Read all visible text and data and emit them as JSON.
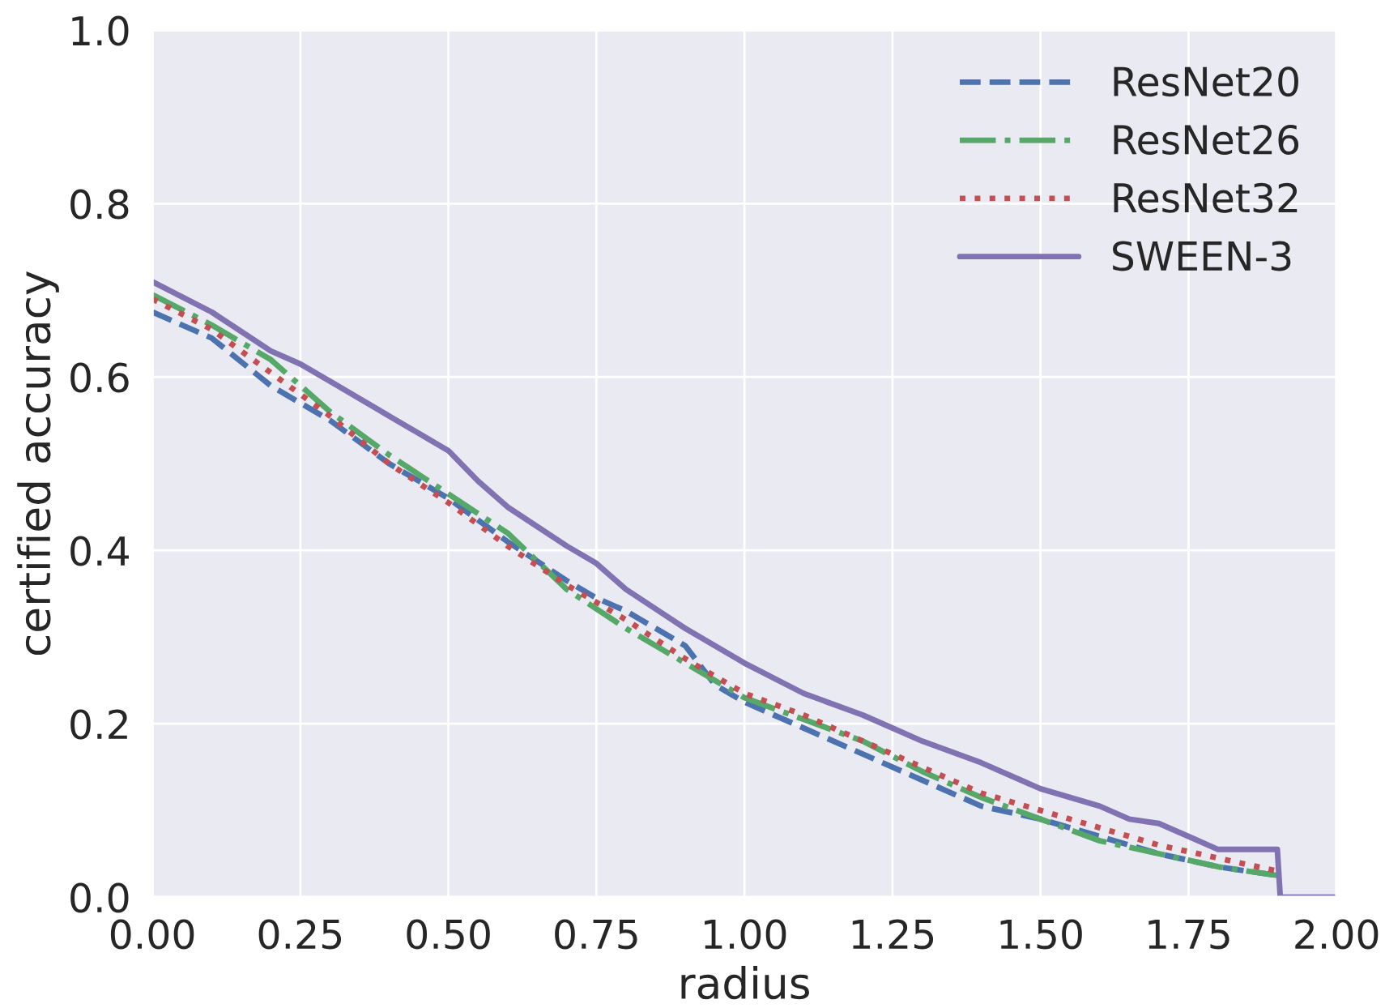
{
  "chart_data": {
    "type": "line",
    "xlabel": "radius",
    "ylabel": "certified accuracy",
    "xlim": [
      0,
      2
    ],
    "ylim": [
      0,
      1
    ],
    "xticks": [
      {
        "value": 0,
        "label": "0.00"
      },
      0.25,
      {
        "value": 0.5,
        "label": "0.50"
      },
      0.75,
      {
        "value": 1,
        "label": "1.00"
      },
      1.25,
      {
        "value": 1.5,
        "label": "1.50"
      },
      1.75,
      {
        "value": 2,
        "label": "2.00"
      }
    ],
    "yticks": [
      {
        "value": 0,
        "label": "0.0"
      },
      0.2,
      0.4,
      0.6,
      0.8,
      {
        "value": 1,
        "label": "1.0"
      }
    ],
    "grid": true,
    "legend": "top right",
    "series": [
      {
        "name": "ResNet20",
        "color": "#4c72b0",
        "line_style": "dashed",
        "x": [
          0,
          0.1,
          0.2,
          0.25,
          0.3,
          0.4,
          0.5,
          0.6,
          0.7,
          0.75,
          0.8,
          0.9,
          0.95,
          1.0,
          1.1,
          1.2,
          1.3,
          1.4,
          1.5,
          1.6,
          1.7,
          1.8,
          1.9
        ],
        "values": [
          0.675,
          0.645,
          0.59,
          0.57,
          0.55,
          0.5,
          0.46,
          0.41,
          0.365,
          0.345,
          0.33,
          0.29,
          0.245,
          0.225,
          0.195,
          0.165,
          0.135,
          0.105,
          0.09,
          0.07,
          0.05,
          0.035,
          0.025
        ]
      },
      {
        "name": "ResNet26",
        "color": "#55a868",
        "line_style": "dashdot",
        "x": [
          0,
          0.1,
          0.2,
          0.3,
          0.4,
          0.5,
          0.6,
          0.7,
          0.8,
          0.9,
          1.0,
          1.1,
          1.2,
          1.3,
          1.4,
          1.5,
          1.6,
          1.7,
          1.8,
          1.9
        ],
        "values": [
          0.695,
          0.66,
          0.62,
          0.56,
          0.51,
          0.465,
          0.42,
          0.355,
          0.31,
          0.27,
          0.23,
          0.205,
          0.18,
          0.145,
          0.115,
          0.09,
          0.065,
          0.05,
          0.035,
          0.025
        ]
      },
      {
        "name": "ResNet32",
        "color": "#c44e52",
        "line_style": "dotted",
        "x": [
          0,
          0.1,
          0.2,
          0.3,
          0.4,
          0.5,
          0.6,
          0.7,
          0.8,
          0.9,
          1.0,
          1.1,
          1.2,
          1.3,
          1.4,
          1.5,
          1.6,
          1.7,
          1.8,
          1.9
        ],
        "values": [
          0.69,
          0.655,
          0.605,
          0.555,
          0.5,
          0.455,
          0.405,
          0.36,
          0.32,
          0.275,
          0.235,
          0.21,
          0.18,
          0.15,
          0.12,
          0.1,
          0.08,
          0.06,
          0.045,
          0.03
        ]
      },
      {
        "name": "SWEEN-3",
        "color": "#8172b2",
        "line_style": "solid",
        "x": [
          0,
          0.1,
          0.2,
          0.25,
          0.3,
          0.4,
          0.5,
          0.55,
          0.6,
          0.7,
          0.75,
          0.8,
          0.9,
          1.0,
          1.1,
          1.2,
          1.25,
          1.3,
          1.4,
          1.5,
          1.6,
          1.65,
          1.7,
          1.75,
          1.8,
          1.9,
          1.905,
          2.0
        ],
        "values": [
          0.71,
          0.675,
          0.63,
          0.615,
          0.595,
          0.555,
          0.515,
          0.48,
          0.45,
          0.405,
          0.385,
          0.355,
          0.31,
          0.27,
          0.235,
          0.21,
          0.195,
          0.18,
          0.155,
          0.125,
          0.105,
          0.09,
          0.085,
          0.07,
          0.055,
          0.055,
          0.0,
          0.0
        ]
      }
    ]
  }
}
